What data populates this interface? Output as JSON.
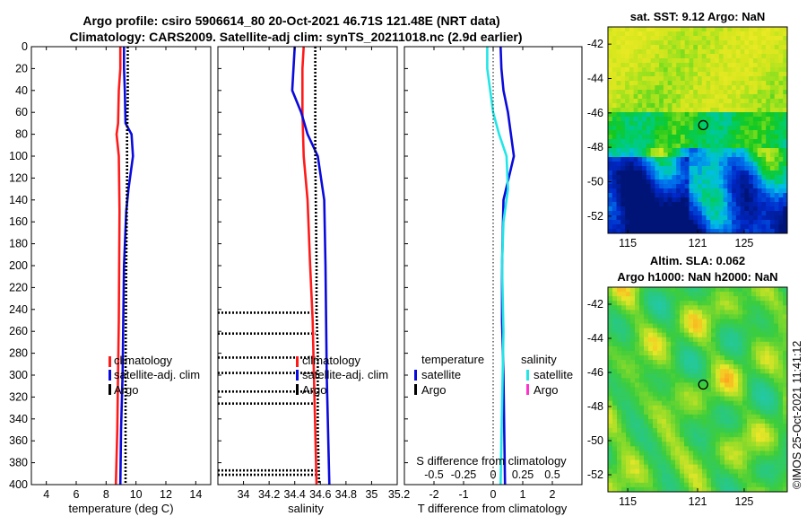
{
  "header": {
    "title_line1": "Argo profile: csiro 5906614_80 20-Oct-2021 46.71S 121.48E (NRT data)",
    "title_line2": "Climatology: CARS2009. Satellite-adj clim: synTS_20211018.nc (2.9d earlier)"
  },
  "watermark": "©IMOS 25-Oct-2021 11:41:12",
  "colors": {
    "red": "#ff1a1a",
    "blue": "#0a0adc",
    "cyan": "#22e6e6",
    "magenta": "#ff33cc",
    "black": "#000000"
  },
  "chart_data": [
    {
      "id": "temperature",
      "type": "line",
      "xlabel": "temperature (deg C)",
      "xlim": [
        3,
        15
      ],
      "xticks": [
        4,
        6,
        8,
        10,
        12,
        14
      ],
      "ylim": [
        0,
        400
      ],
      "yticks": [
        0,
        20,
        40,
        60,
        80,
        100,
        120,
        140,
        160,
        180,
        200,
        220,
        240,
        260,
        280,
        300,
        320,
        340,
        360,
        380,
        400
      ],
      "legend": [
        "climatology",
        "satellite-adj. clim",
        "Argo"
      ],
      "series": [
        {
          "name": "climatology",
          "color": "red",
          "style": "solid",
          "x": [
            8.95,
            8.95,
            8.85,
            8.8,
            8.7,
            8.85,
            8.9,
            8.85,
            8.75,
            8.65
          ],
          "y": [
            0,
            20,
            40,
            70,
            80,
            100,
            150,
            250,
            350,
            400
          ]
        },
        {
          "name": "satellite-adj. clim",
          "color": "blue",
          "style": "solid",
          "x": [
            9.2,
            9.2,
            9.25,
            9.3,
            9.7,
            9.8,
            9.5,
            9.35,
            9.2,
            9.15,
            9.1,
            9.0,
            8.95
          ],
          "y": [
            0,
            20,
            40,
            70,
            80,
            100,
            130,
            150,
            200,
            250,
            300,
            350,
            400
          ]
        },
        {
          "name": "Argo",
          "color": "black",
          "style": "dotted",
          "x": [
            9.45,
            9.45,
            9.4,
            9.4,
            9.35,
            9.3,
            9.3
          ],
          "y": [
            0,
            50,
            80,
            120,
            200,
            300,
            400
          ]
        }
      ]
    },
    {
      "id": "salinity",
      "type": "line",
      "xlabel": "salinity",
      "xlim": [
        33.8,
        35.2
      ],
      "xticks": [
        34,
        34.2,
        34.4,
        34.6,
        34.8,
        35,
        35.2
      ],
      "ylim": [
        0,
        400
      ],
      "legend": [
        "climatology",
        "satellite-adj. clim",
        "Argo"
      ],
      "series": [
        {
          "name": "climatology",
          "color": "red",
          "style": "solid",
          "x": [
            34.47,
            34.46,
            34.46,
            34.47,
            34.5,
            34.52,
            34.54,
            34.55,
            34.56,
            34.57
          ],
          "y": [
            0,
            20,
            60,
            100,
            140,
            200,
            250,
            300,
            350,
            400
          ]
        },
        {
          "name": "satellite-adj. clim",
          "color": "blue",
          "style": "solid",
          "x": [
            34.4,
            34.39,
            34.38,
            34.45,
            34.5,
            34.58,
            34.63,
            34.64,
            34.65,
            34.67
          ],
          "y": [
            0,
            20,
            40,
            60,
            80,
            100,
            140,
            200,
            300,
            400
          ]
        },
        {
          "name": "Argo",
          "color": "black",
          "style": "dotted",
          "x": [
            34.56,
            34.56,
            34.57,
            34.57,
            34.58,
            34.58,
            34.59
          ],
          "y": [
            0,
            100,
            200,
            240,
            280,
            350,
            400
          ]
        }
      ],
      "spikes_depths": [
        243,
        262,
        284,
        298,
        315,
        326,
        387,
        391
      ],
      "spike_left": 33.8
    },
    {
      "id": "differences",
      "type": "line",
      "xlabel": "T difference from climatology",
      "xlim": [
        -3,
        3
      ],
      "xticks": [
        -2,
        -1,
        0,
        1,
        2
      ],
      "xlabel_top": "S difference from climatology",
      "xticks_top": [
        "-0.5",
        "-0.25",
        "0",
        "0.25",
        "0.5"
      ],
      "ylim": [
        0,
        400
      ],
      "legend_titles": [
        "temperature",
        "salinity"
      ],
      "legend": [
        "satellite",
        "Argo",
        "satellite",
        "Argo"
      ],
      "series": [
        {
          "name": "T satellite",
          "color": "blue",
          "style": "solid",
          "x": [
            0.25,
            0.28,
            0.35,
            0.5,
            0.6,
            0.7,
            0.35,
            0.3,
            0.3,
            0.35,
            0.4
          ],
          "y": [
            0,
            20,
            40,
            60,
            80,
            100,
            140,
            200,
            250,
            300,
            400
          ]
        },
        {
          "name": "S satellite",
          "color": "cyan",
          "style": "solid",
          "x": [
            -0.2,
            -0.2,
            -0.1,
            0.0,
            0.2,
            0.45,
            0.5,
            0.35,
            0.3,
            0.35,
            0.3,
            0.25
          ],
          "y": [
            0,
            20,
            40,
            60,
            80,
            100,
            130,
            160,
            200,
            260,
            330,
            400
          ]
        },
        {
          "name": "zero",
          "color": "black",
          "style": "dotted",
          "x": [
            0,
            0
          ],
          "y": [
            0,
            400
          ]
        }
      ]
    },
    {
      "id": "sst_map",
      "type": "heatmap",
      "title": "sat. SST: 9.12 Argo: NaN",
      "xlim": [
        113.3,
        128.7
      ],
      "xticks": [
        115,
        121,
        125
      ],
      "ylim": [
        -53,
        -41
      ],
      "yticks": [
        -42,
        -44,
        -46,
        -48,
        -50,
        -52
      ],
      "marker": {
        "lon": 121.48,
        "lat": -46.71
      }
    },
    {
      "id": "sla_map",
      "type": "heatmap",
      "title_line1": "Altim. SLA: 0.062",
      "title_line2": "Argo h1000: NaN h2000: NaN",
      "xlim": [
        113.3,
        128.7
      ],
      "xticks": [
        115,
        121,
        125
      ],
      "ylim": [
        -53,
        -41
      ],
      "yticks": [
        -42,
        -44,
        -46,
        -48,
        -50,
        -52
      ],
      "marker": {
        "lon": 121.48,
        "lat": -46.71
      }
    }
  ]
}
